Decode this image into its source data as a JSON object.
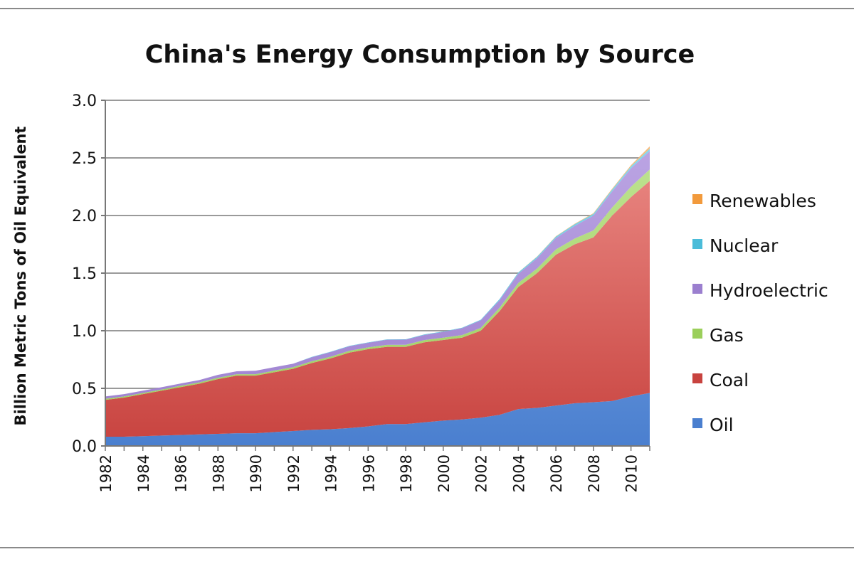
{
  "chart_data": {
    "type": "area",
    "stacked": true,
    "title": "China's Energy Consumption by Source",
    "xlabel": "",
    "ylabel": "Billion Metric Tons of Oil Equivalent",
    "ylim": [
      0,
      3.0
    ],
    "yticks": [
      "0.0",
      "0.5",
      "1.0",
      "1.5",
      "2.0",
      "2.5",
      "3.0"
    ],
    "x": [
      1982,
      1983,
      1984,
      1985,
      1986,
      1987,
      1988,
      1989,
      1990,
      1991,
      1992,
      1993,
      1994,
      1995,
      1996,
      1997,
      1998,
      1999,
      2000,
      2001,
      2002,
      2003,
      2004,
      2005,
      2006,
      2007,
      2008,
      2009,
      2010,
      2011
    ],
    "xticks": [
      "1982",
      "1984",
      "1986",
      "1988",
      "1990",
      "1992",
      "1994",
      "1996",
      "1998",
      "2000",
      "2002",
      "2004",
      "2006",
      "2008",
      "2010"
    ],
    "grid": true,
    "legend_position": "right",
    "series": [
      {
        "name": "Oil",
        "color": "#4a7fcf",
        "values": [
          0.08,
          0.08,
          0.085,
          0.09,
          0.095,
          0.1,
          0.105,
          0.11,
          0.11,
          0.12,
          0.13,
          0.14,
          0.145,
          0.155,
          0.17,
          0.19,
          0.19,
          0.205,
          0.22,
          0.23,
          0.245,
          0.27,
          0.32,
          0.33,
          0.35,
          0.37,
          0.38,
          0.39,
          0.43,
          0.46
        ]
      },
      {
        "name": "Coal",
        "color": "#c8433f",
        "values": [
          0.32,
          0.34,
          0.365,
          0.39,
          0.415,
          0.44,
          0.475,
          0.5,
          0.5,
          0.52,
          0.54,
          0.58,
          0.615,
          0.655,
          0.67,
          0.67,
          0.67,
          0.695,
          0.7,
          0.71,
          0.755,
          0.9,
          1.06,
          1.17,
          1.31,
          1.38,
          1.43,
          1.61,
          1.73,
          1.84
        ]
      },
      {
        "name": "Gas",
        "color": "#9bcf5b",
        "values": [
          0.01,
          0.01,
          0.01,
          0.01,
          0.012,
          0.012,
          0.012,
          0.013,
          0.013,
          0.014,
          0.014,
          0.015,
          0.015,
          0.016,
          0.016,
          0.017,
          0.018,
          0.019,
          0.02,
          0.022,
          0.025,
          0.03,
          0.035,
          0.04,
          0.045,
          0.05,
          0.06,
          0.07,
          0.09,
          0.1
        ]
      },
      {
        "name": "Hydroelectric",
        "color": "#9b7fcf",
        "values": [
          0.02,
          0.02,
          0.02,
          0.02,
          0.02,
          0.02,
          0.025,
          0.025,
          0.03,
          0.03,
          0.03,
          0.035,
          0.04,
          0.04,
          0.04,
          0.045,
          0.045,
          0.045,
          0.05,
          0.06,
          0.065,
          0.065,
          0.08,
          0.09,
          0.1,
          0.11,
          0.13,
          0.14,
          0.16,
          0.16
        ]
      },
      {
        "name": "Nuclear",
        "color": "#4bbcd9",
        "values": [
          0,
          0,
          0,
          0,
          0,
          0,
          0,
          0,
          0,
          0,
          0,
          0.003,
          0.003,
          0.003,
          0.003,
          0.003,
          0.003,
          0.004,
          0.004,
          0.004,
          0.006,
          0.01,
          0.011,
          0.012,
          0.012,
          0.014,
          0.015,
          0.016,
          0.017,
          0.02
        ]
      },
      {
        "name": "Renewables",
        "color": "#f29a3c",
        "values": [
          0,
          0,
          0,
          0,
          0,
          0,
          0,
          0,
          0,
          0,
          0,
          0,
          0,
          0,
          0,
          0,
          0,
          0,
          0,
          0,
          0,
          0,
          0.001,
          0.002,
          0.003,
          0.004,
          0.005,
          0.007,
          0.01,
          0.02
        ]
      }
    ]
  }
}
